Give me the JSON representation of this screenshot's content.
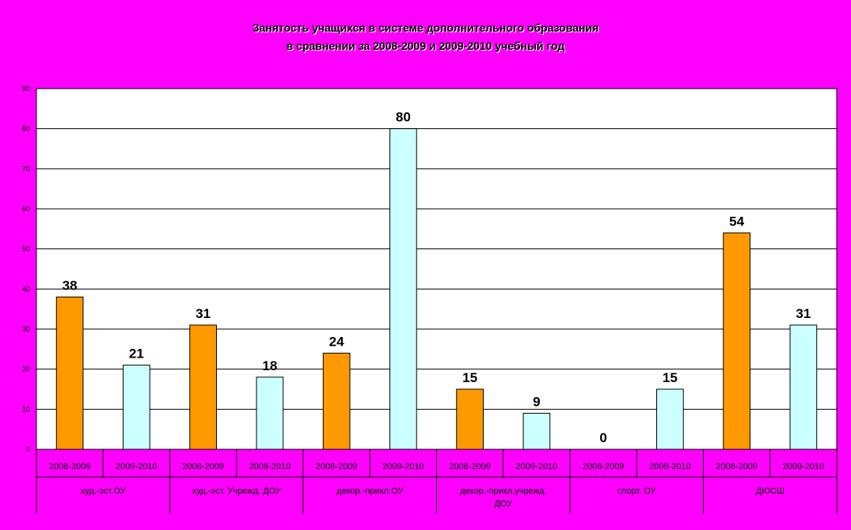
{
  "chart_data": {
    "type": "bar",
    "title": "Занятость учащихся в системе дополнительного образования",
    "subtitle": "в сравнении за 2008-2009 и 2009-2010 учебный год",
    "ylim": [
      0,
      90
    ],
    "yticks": [
      0,
      10,
      20,
      30,
      40,
      50,
      60,
      70,
      80,
      90
    ],
    "grid": true,
    "groups": [
      {
        "label": "худ.-эст.ОУ",
        "bars": [
          {
            "category": "2008-2009",
            "value": 38
          },
          {
            "category": "2009-2010",
            "value": 21
          }
        ]
      },
      {
        "label": "худ.-эст. Учрежд. ДОУ",
        "bars": [
          {
            "category": "2008-2009",
            "value": 31
          },
          {
            "category": "2009-2010",
            "value": 18
          }
        ]
      },
      {
        "label": "декор.-прикл.ОУ",
        "bars": [
          {
            "category": "2008-2009",
            "value": 24
          },
          {
            "category": "2009-2010",
            "value": 80
          }
        ]
      },
      {
        "label": "декор.-прикл.учрежд. ДОУ",
        "bars": [
          {
            "category": "2008-2009",
            "value": 15
          },
          {
            "category": "2009-2010",
            "value": 9
          }
        ]
      },
      {
        "label": "спорт. ОУ",
        "bars": [
          {
            "category": "2008-2009",
            "value": 0
          },
          {
            "category": "2009-2010",
            "value": 15
          }
        ]
      },
      {
        "label": "ДЮСШ",
        "bars": [
          {
            "category": "2008-2009",
            "value": 54
          },
          {
            "category": "2009-2010",
            "value": 31
          }
        ]
      }
    ],
    "colors": {
      "2008-2009": "#ff9900",
      "2009-2010": "#ccffff",
      "background": "#ff00ff",
      "plot_area": "#ffffff"
    }
  }
}
